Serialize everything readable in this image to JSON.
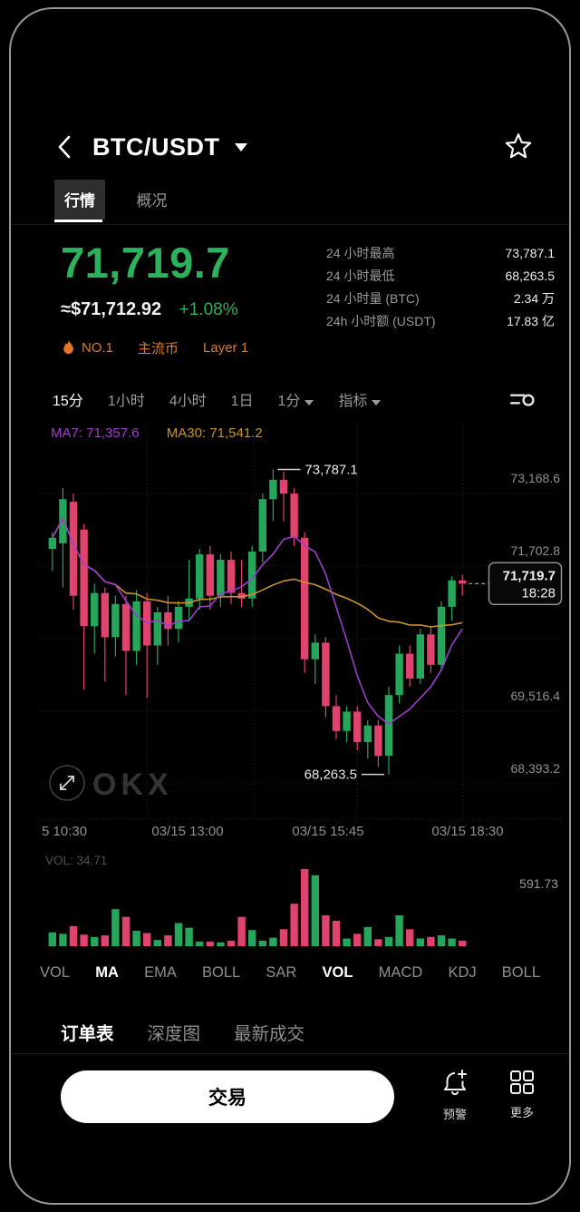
{
  "header": {
    "title": "BTC/USDT"
  },
  "tabs": [
    {
      "label": "行情",
      "active": true
    },
    {
      "label": "概况",
      "active": false
    }
  ],
  "price": {
    "last": "71,719.7",
    "fiat": "≈$71,712.92",
    "change": "+1.08%"
  },
  "stats": [
    {
      "label": "24 小时最高",
      "value": "73,787.1"
    },
    {
      "label": "24 小时最低",
      "value": "68,263.5"
    },
    {
      "label": "24 小时量 (BTC)",
      "value": "2.34 万"
    },
    {
      "label": "24h 小时额 (USDT)",
      "value": "17.83 亿"
    }
  ],
  "badges": [
    "NO.1",
    "主流币",
    "Layer 1"
  ],
  "timeframes": [
    {
      "label": "15分",
      "active": true
    },
    {
      "label": "1小时",
      "active": false
    },
    {
      "label": "4小时",
      "active": false
    },
    {
      "label": "1日",
      "active": false
    },
    {
      "label": "1分",
      "active": false,
      "dropdown": true
    },
    {
      "label": "指标",
      "active": false,
      "dropdown": true
    }
  ],
  "indicators": [
    {
      "label": "VOL",
      "active": false
    },
    {
      "label": "MA",
      "active": true
    },
    {
      "label": "EMA",
      "active": false
    },
    {
      "label": "BOLL",
      "active": false
    },
    {
      "label": "SAR",
      "active": false
    },
    {
      "label": "VOL",
      "active": true
    },
    {
      "label": "MACD",
      "active": false
    },
    {
      "label": "KDJ",
      "active": false
    },
    {
      "label": "BOLL",
      "active": false
    }
  ],
  "order_tabs": [
    {
      "label": "订单表",
      "active": true
    },
    {
      "label": "深度图",
      "active": false
    },
    {
      "label": "最新成交",
      "active": false
    }
  ],
  "actions": {
    "trade": "交易",
    "alert": "预警",
    "more": "更多"
  },
  "chart_data": {
    "type": "candlestick",
    "title": "BTC/USDT 15分 K线图",
    "price_top": 74650,
    "price_bottom": 67420,
    "y_axis_labels": [
      "73,168.6",
      "71,702.8",
      "",
      "69,516.4",
      "68,393.2"
    ],
    "x_labels": [
      "5 10:30",
      "03/15 13:00",
      "03/15 15:45",
      "03/15 18:30"
    ],
    "ma_labels": {
      "ma7": "MA7: 71,357.6",
      "ma30": "MA30: 71,541.2"
    },
    "high_label": "73,787.1",
    "low_label": "68,263.5",
    "price_tag": {
      "price": 71719.7,
      "price_text": "71,719.7",
      "time_text": "18:28"
    },
    "watermark": "OKX",
    "volume_label": "VOL: 34.71",
    "volume_axis_max": "591.73",
    "colors": {
      "up": "#26a65a",
      "down": "#e0436d",
      "ma7": "#9b3ec9",
      "ma30": "#c9922f"
    },
    "candles": [
      [
        72350,
        72650,
        71950,
        72550
      ],
      [
        72450,
        73450,
        71650,
        73250
      ],
      [
        73200,
        73350,
        71250,
        71500
      ],
      [
        72700,
        72800,
        69800,
        70950
      ],
      [
        70950,
        71720,
        70450,
        71550
      ],
      [
        71550,
        71650,
        69950,
        70750
      ],
      [
        70750,
        71500,
        70400,
        71350
      ],
      [
        71350,
        71500,
        69700,
        70500
      ],
      [
        70500,
        71600,
        70250,
        71400
      ],
      [
        71400,
        71550,
        69650,
        70600
      ],
      [
        70600,
        71300,
        70250,
        71200
      ],
      [
        71200,
        71500,
        70600,
        70900
      ],
      [
        70900,
        71400,
        70650,
        71300
      ],
      [
        71300,
        72150,
        71050,
        71450
      ],
      [
        71450,
        72350,
        71250,
        72250
      ],
      [
        72250,
        72400,
        71250,
        71500
      ],
      [
        71500,
        72250,
        71300,
        72150
      ],
      [
        72150,
        72300,
        71350,
        71550
      ],
      [
        71550,
        72150,
        71300,
        71450
      ],
      [
        71450,
        72400,
        71300,
        72300
      ],
      [
        72300,
        73350,
        72100,
        73250
      ],
      [
        73250,
        73787.1,
        72850,
        73600
      ],
      [
        73600,
        73750,
        72850,
        73350
      ],
      [
        73350,
        73450,
        72400,
        72550
      ],
      [
        72550,
        72650,
        70100,
        70350
      ],
      [
        70350,
        70800,
        69900,
        70650
      ],
      [
        70650,
        70750,
        69300,
        69500
      ],
      [
        69500,
        69700,
        68900,
        69050
      ],
      [
        69050,
        69500,
        68850,
        69400
      ],
      [
        69400,
        69500,
        68700,
        68850
      ],
      [
        68850,
        69250,
        68550,
        69150
      ],
      [
        69150,
        69250,
        68400,
        68600
      ],
      [
        68600,
        69850,
        68263.5,
        69700
      ],
      [
        69700,
        70600,
        69550,
        70450
      ],
      [
        70450,
        70600,
        69850,
        70000
      ],
      [
        70000,
        70900,
        69900,
        70800
      ],
      [
        70800,
        70950,
        70100,
        70250
      ],
      [
        70250,
        71400,
        70150,
        71300
      ],
      [
        71300,
        71850,
        71050,
        71780
      ],
      [
        71780,
        71880,
        71500,
        71719.7
      ]
    ],
    "volumes": [
      0.18,
      0.16,
      0.26,
      0.15,
      0.12,
      0.14,
      0.48,
      0.38,
      0.2,
      0.17,
      0.08,
      0.14,
      0.3,
      0.24,
      0.06,
      0.06,
      0.05,
      0.07,
      0.38,
      0.21,
      0.07,
      0.11,
      0.22,
      0.55,
      1.0,
      0.92,
      0.4,
      0.33,
      0.1,
      0.16,
      0.25,
      0.09,
      0.12,
      0.4,
      0.22,
      0.1,
      0.12,
      0.14,
      0.1,
      0.07
    ]
  }
}
